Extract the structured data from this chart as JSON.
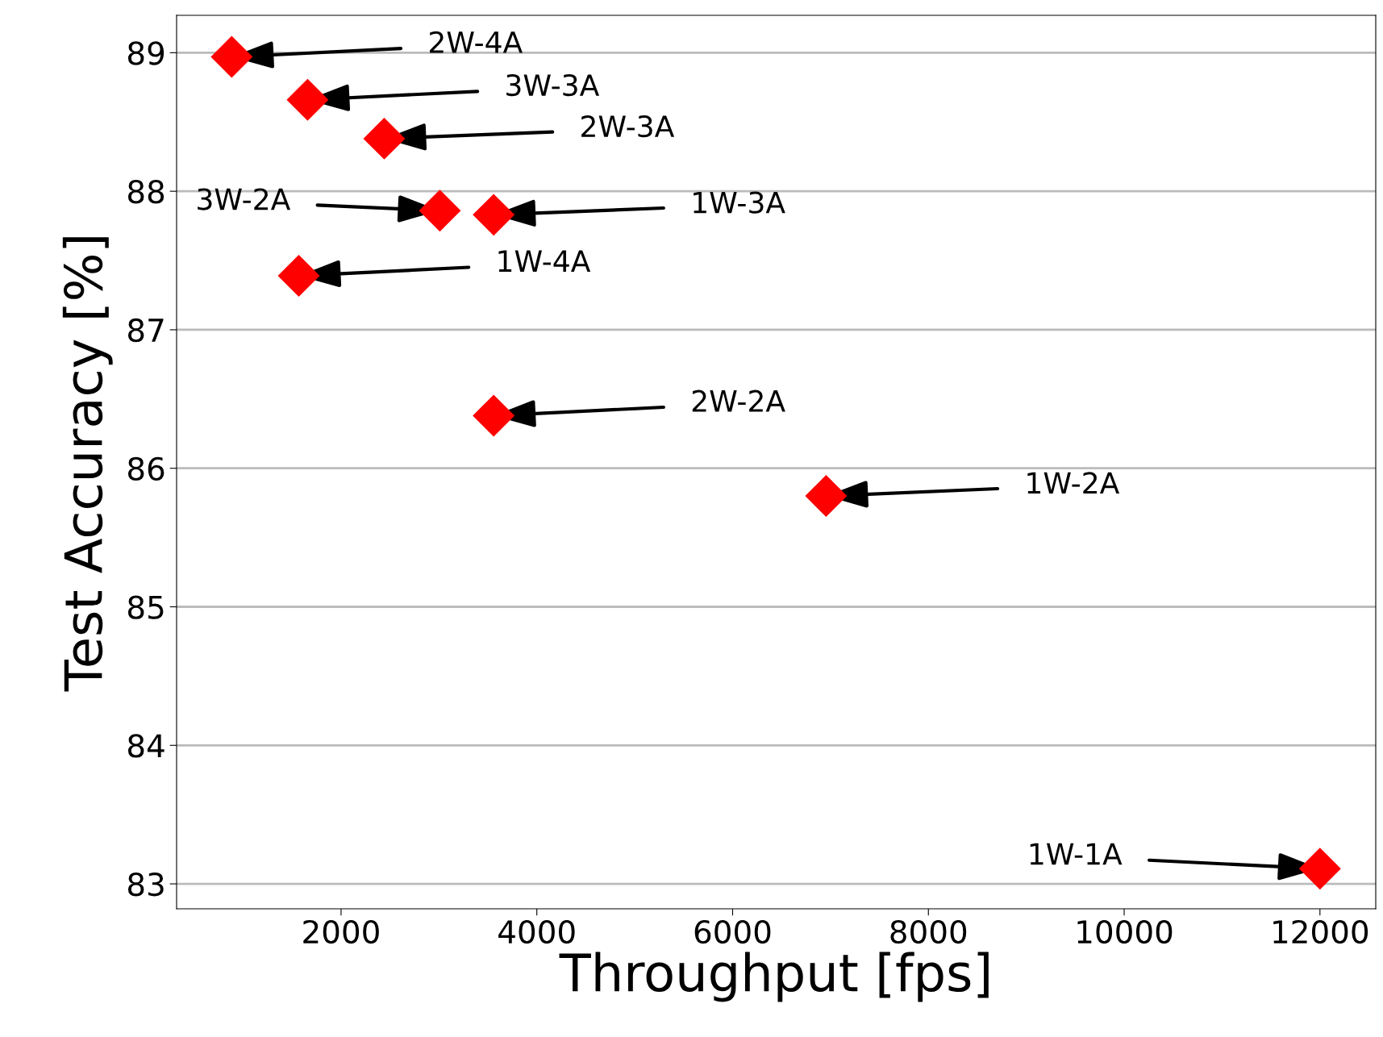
{
  "chart_data": {
    "type": "scatter",
    "xlabel": "Throughput [fps]",
    "ylabel": "Test Accuracy [%]",
    "x": [
      883,
      1658,
      2441,
      3009,
      3559,
      1568,
      3559,
      6955,
      12000
    ],
    "series": [
      {
        "color": "#ff0000",
        "values": [
          88.97,
          88.66,
          88.38,
          87.86,
          87.83,
          87.39,
          86.38,
          85.8,
          83.11
        ]
      }
    ],
    "marker": "diamond",
    "grid": "y",
    "xlim": [
      320,
      12570
    ],
    "xticks": [
      2000,
      4000,
      6000,
      8000,
      10000,
      12000
    ],
    "ylim": [
      82.82,
      89.27
    ],
    "yticks": [
      83,
      84,
      85,
      86,
      87,
      88,
      89
    ],
    "annotations": [
      {
        "text": "2W-4A",
        "x": 883,
        "y": 88.97
      },
      {
        "text": "3W-3A",
        "x": 1658,
        "y": 88.66
      },
      {
        "text": "2W-3A",
        "x": 2441,
        "y": 88.38
      },
      {
        "text": "3W-2A",
        "x": 3009,
        "y": 87.86
      },
      {
        "text": "1W-3A",
        "x": 3559,
        "y": 87.83
      },
      {
        "text": "1W-4A",
        "x": 1568,
        "y": 87.39
      },
      {
        "text": "2W-2A",
        "x": 3559,
        "y": 86.38
      },
      {
        "text": "1W-2A",
        "x": 6955,
        "y": 85.8
      },
      {
        "text": "1W-1A",
        "x": 12000,
        "y": 83.11
      }
    ]
  }
}
